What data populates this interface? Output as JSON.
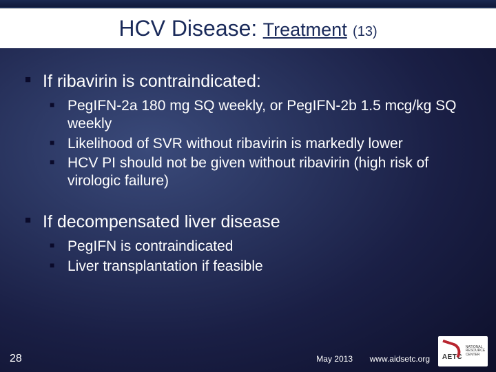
{
  "colors": {
    "bg_gradient_inner": "#3a4a7a",
    "bg_gradient_outer": "#0d0f2a",
    "title_bg": "#ffffff",
    "title_text": "#1a2a5a",
    "body_text": "#ffffff",
    "bullet_color": "#0a0a2a",
    "logo_accent": "#b8252f"
  },
  "typography": {
    "title_main_size": 32,
    "title_sub_size": 27,
    "title_num_size": 20,
    "l1_size": 25,
    "l2_size": 21,
    "footer_size": 12
  },
  "title": {
    "main": "HCV Disease:",
    "sub": "Treatment",
    "num": "(13)"
  },
  "sections": [
    {
      "heading": "If ribavirin is contraindicated:",
      "items": [
        "PegIFN-2a 180 mg SQ weekly, or PegIFN-2b 1.5 mcg/kg SQ weekly",
        "Likelihood of SVR without ribavirin is markedly lower",
        "HCV PI should not be given without ribavirin (high risk of virologic failure)"
      ]
    },
    {
      "heading": "If decompensated liver disease",
      "items": [
        "PegIFN is contraindicated",
        "Liver transplantation if feasible"
      ]
    }
  ],
  "footer": {
    "slide_number": "28",
    "date": "May 2013",
    "url": "www.aidsetc.org",
    "logo_text": "AETC",
    "logo_subtext": "NATIONAL RESOURCE CENTER"
  }
}
